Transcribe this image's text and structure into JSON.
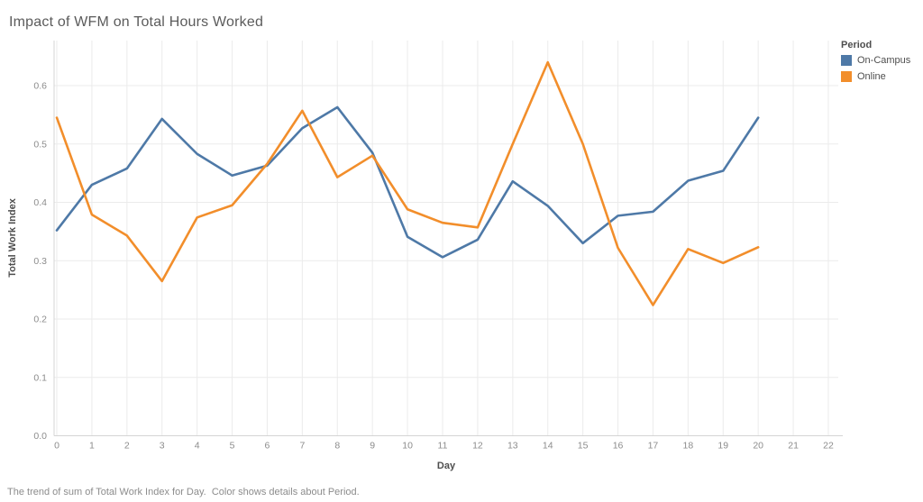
{
  "title": "Impact of WFM on Total Hours Worked",
  "caption": "The trend of sum of Total Work Index for Day.  Color shows details about Period.",
  "legend": {
    "title": "Period",
    "items": [
      {
        "label": "On-Campus",
        "color": "#4e79a7"
      },
      {
        "label": "Online",
        "color": "#f28e2b"
      }
    ]
  },
  "chart_data": {
    "type": "line",
    "title": "Impact of WFM on Total Hours Worked",
    "xlabel": "Day",
    "ylabel": "Total Work Index",
    "xlim": [
      0,
      22
    ],
    "ylim": [
      0,
      0.65
    ],
    "grid": true,
    "legend_position": "top-right-outside",
    "x_ticks": [
      0,
      1,
      2,
      3,
      4,
      5,
      6,
      7,
      8,
      9,
      10,
      11,
      12,
      13,
      14,
      15,
      16,
      17,
      18,
      19,
      20,
      21,
      22
    ],
    "y_ticks": [
      0.0,
      0.1,
      0.2,
      0.3,
      0.4,
      0.5,
      0.6
    ],
    "x": [
      0,
      1,
      2,
      3,
      4,
      5,
      6,
      7,
      8,
      9,
      10,
      11,
      12,
      13,
      14,
      15,
      16,
      17,
      18,
      19,
      20
    ],
    "series": [
      {
        "name": "On-Campus",
        "color": "#4e79a7",
        "values": [
          0.352,
          0.43,
          0.458,
          0.543,
          0.483,
          0.446,
          0.463,
          0.527,
          0.563,
          0.485,
          0.341,
          0.306,
          0.336,
          0.436,
          0.394,
          0.33,
          0.377,
          0.384,
          0.437,
          0.454,
          0.545
        ]
      },
      {
        "name": "Online",
        "color": "#f28e2b",
        "values": [
          0.545,
          0.379,
          0.343,
          0.265,
          0.374,
          0.395,
          0.466,
          0.557,
          0.443,
          0.48,
          0.388,
          0.365,
          0.357,
          0.5,
          0.64,
          0.5,
          0.322,
          0.224,
          0.32,
          0.296,
          0.323
        ]
      }
    ]
  }
}
